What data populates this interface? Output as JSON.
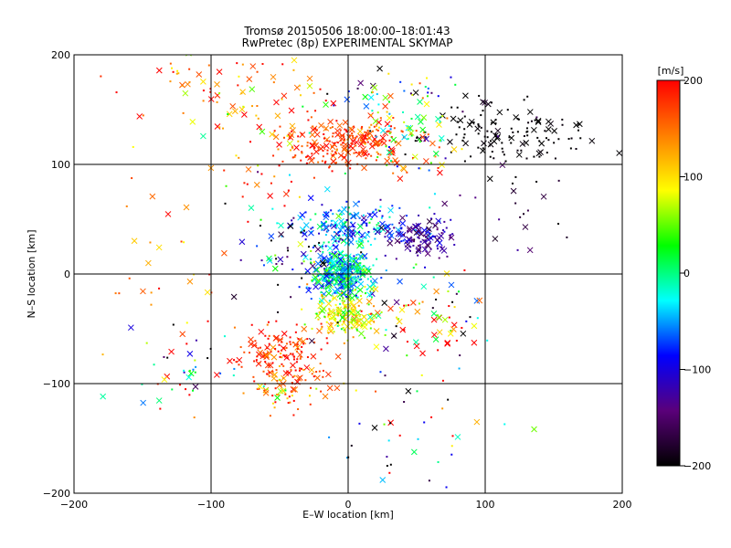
{
  "chart_data": {
    "type": "scatter",
    "title": "Tromsø 20150506 18:00:00–18:01:43",
    "subtitle": "RwPretec (8p) EXPERIMENTAL SKYMAP",
    "xlabel": "E–W location [km]",
    "ylabel": "N–S location [km]",
    "xlim": [
      -200,
      200
    ],
    "ylim": [
      -200,
      200
    ],
    "x_ticks": [
      -200,
      -100,
      0,
      100,
      200
    ],
    "y_ticks": [
      -200,
      -100,
      0,
      100,
      200
    ],
    "grid": true,
    "markers": [
      "dot",
      "cross"
    ],
    "colorbar": {
      "label": "[m/s]",
      "range": [
        -200,
        200
      ],
      "ticks": [
        200,
        100,
        0,
        -100,
        -200
      ],
      "colormap": [
        "#000000",
        "#5a007a",
        "#0000ff",
        "#00ffff",
        "#00ff00",
        "#ffff00",
        "#ff7f00",
        "#ff0000"
      ]
    },
    "clusters": [
      {
        "cx": -5,
        "cy": 2,
        "sx": 12,
        "sy": 12,
        "n": 420,
        "v": -20,
        "dv": 45
      },
      {
        "cx": -3,
        "cy": -38,
        "sx": 12,
        "sy": 10,
        "n": 160,
        "v": 90,
        "dv": 35
      },
      {
        "cx": 0,
        "cy": 45,
        "sx": 22,
        "sy": 10,
        "n": 170,
        "v": -60,
        "dv": 40
      },
      {
        "cx": 55,
        "cy": 33,
        "sx": 12,
        "sy": 8,
        "n": 110,
        "v": -130,
        "dv": 30
      },
      {
        "cx": 0,
        "cy": 120,
        "sx": 25,
        "sy": 12,
        "n": 260,
        "v": 175,
        "dv": 25
      },
      {
        "cx": 110,
        "cy": 128,
        "sx": 32,
        "sy": 14,
        "n": 130,
        "v": -200,
        "dv": 5
      },
      {
        "cx": 45,
        "cy": 125,
        "sx": 18,
        "sy": 20,
        "n": 70,
        "v": 40,
        "dv": 80
      },
      {
        "cx": -50,
        "cy": -75,
        "sx": 15,
        "sy": 15,
        "n": 150,
        "v": 180,
        "dv": 25
      },
      {
        "cx": -40,
        "cy": -105,
        "sx": 18,
        "sy": 10,
        "n": 60,
        "v": 150,
        "dv": 50
      },
      {
        "cx": 60,
        "cy": -40,
        "sx": 25,
        "sy": 25,
        "n": 80,
        "v": 60,
        "dv": 150
      },
      {
        "cx": -80,
        "cy": 170,
        "sx": 40,
        "sy": 20,
        "n": 80,
        "v": 150,
        "dv": 60
      },
      {
        "cx": 30,
        "cy": 160,
        "sx": 30,
        "sy": 12,
        "n": 40,
        "v": 0,
        "dv": 150
      },
      {
        "cx": -40,
        "cy": 20,
        "sx": 25,
        "sy": 25,
        "n": 70,
        "v": -120,
        "dv": 100
      },
      {
        "cx": -120,
        "cy": -90,
        "sx": 25,
        "sy": 25,
        "n": 45,
        "v": 0,
        "dv": 180
      },
      {
        "cx": 50,
        "cy": -150,
        "sx": 30,
        "sy": 30,
        "n": 40,
        "v": 0,
        "dv": 170
      },
      {
        "cx": -60,
        "cy": 100,
        "sx": 30,
        "sy": 30,
        "n": 50,
        "v": 120,
        "dv": 100
      },
      {
        "cx": 120,
        "cy": 70,
        "sx": 20,
        "sy": 30,
        "n": 25,
        "v": -180,
        "dv": 30
      },
      {
        "cx": -130,
        "cy": 0,
        "sx": 25,
        "sy": 30,
        "n": 25,
        "v": 150,
        "dv": 60
      }
    ]
  }
}
